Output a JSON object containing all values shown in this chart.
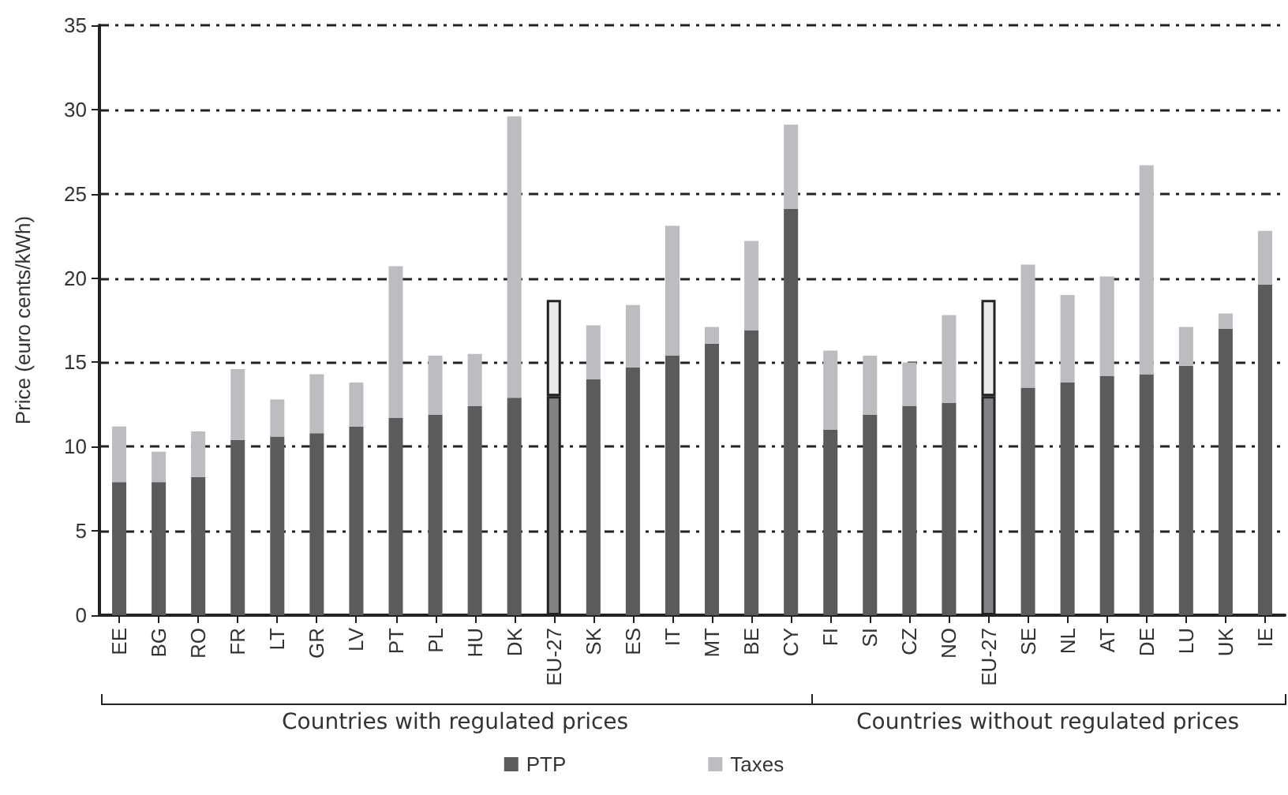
{
  "chart_data": {
    "type": "bar",
    "stacked": true,
    "ylabel": "Price (euro cents/kWh)",
    "categories": [
      "EE",
      "BG",
      "RO",
      "FR",
      "LT",
      "GR",
      "LV",
      "PT",
      "PL",
      "HU",
      "DK",
      "EU-27",
      "SK",
      "ES",
      "IT",
      "MT",
      "BE",
      "CY",
      "FI",
      "SI",
      "CZ",
      "NO",
      "EU-27",
      "SE",
      "NL",
      "AT",
      "DE",
      "LU",
      "UK",
      "IE"
    ],
    "series": [
      {
        "name": "PTP",
        "color": "#5a5b5d",
        "colors": [
          "#5a5b5d",
          "#5a5b5d",
          "#5a5b5d",
          "#5a5b5d",
          "#5a5b5d",
          "#5a5b5d",
          "#5a5b5d",
          "#5a5b5d",
          "#5a5b5d",
          "#5a5b5d",
          "#5a5b5d",
          "#808285",
          "#5a5b5d",
          "#5a5b5d",
          "#5a5b5d",
          "#5a5b5d",
          "#5a5b5d",
          "#5a5b5d",
          "#5a5b5d",
          "#5a5b5d",
          "#5a5b5d",
          "#5a5b5d",
          "#808285",
          "#5a5b5d",
          "#5a5b5d",
          "#5a5b5d",
          "#5a5b5d",
          "#5a5b5d",
          "#5a5b5d",
          "#5a5b5d"
        ],
        "values": [
          7.9,
          7.9,
          8.2,
          10.4,
          10.6,
          10.8,
          11.2,
          11.7,
          11.9,
          12.4,
          12.9,
          13.0,
          14.0,
          14.7,
          15.4,
          16.1,
          16.9,
          24.1,
          11.0,
          11.9,
          12.4,
          12.6,
          13.0,
          13.5,
          13.8,
          14.2,
          14.3,
          14.8,
          17.0,
          19.6
        ]
      },
      {
        "name": "Taxes",
        "color": "#bcbdc0",
        "colors": [
          "#bcbdc0",
          "#bcbdc0",
          "#bcbdc0",
          "#bcbdc0",
          "#bcbdc0",
          "#bcbdc0",
          "#bcbdc0",
          "#bcbdc0",
          "#bcbdc0",
          "#bcbdc0",
          "#bcbdc0",
          "#ebebeb",
          "#bcbdc0",
          "#bcbdc0",
          "#bcbdc0",
          "#bcbdc0",
          "#bcbdc0",
          "#bcbdc0",
          "#bcbdc0",
          "#bcbdc0",
          "#bcbdc0",
          "#bcbdc0",
          "#ebebeb",
          "#bcbdc0",
          "#bcbdc0",
          "#bcbdc0",
          "#bcbdc0",
          "#bcbdc0",
          "#bcbdc0",
          "#bcbdc0"
        ],
        "values": [
          3.3,
          1.8,
          2.7,
          4.2,
          2.2,
          3.5,
          2.6,
          9.0,
          3.5,
          3.1,
          16.7,
          5.7,
          3.2,
          3.7,
          7.7,
          1.0,
          5.3,
          5.0,
          4.7,
          3.5,
          2.6,
          5.2,
          5.7,
          7.3,
          5.2,
          5.9,
          12.4,
          2.3,
          0.9,
          3.2
        ]
      }
    ],
    "ylim": [
      0,
      35
    ],
    "yticks": [
      0,
      5,
      10,
      15,
      20,
      25,
      30,
      35
    ],
    "grid": "y",
    "legend": "bottom",
    "annotations": [
      "Countries with regulated prices",
      "Countries without regulated prices"
    ]
  }
}
